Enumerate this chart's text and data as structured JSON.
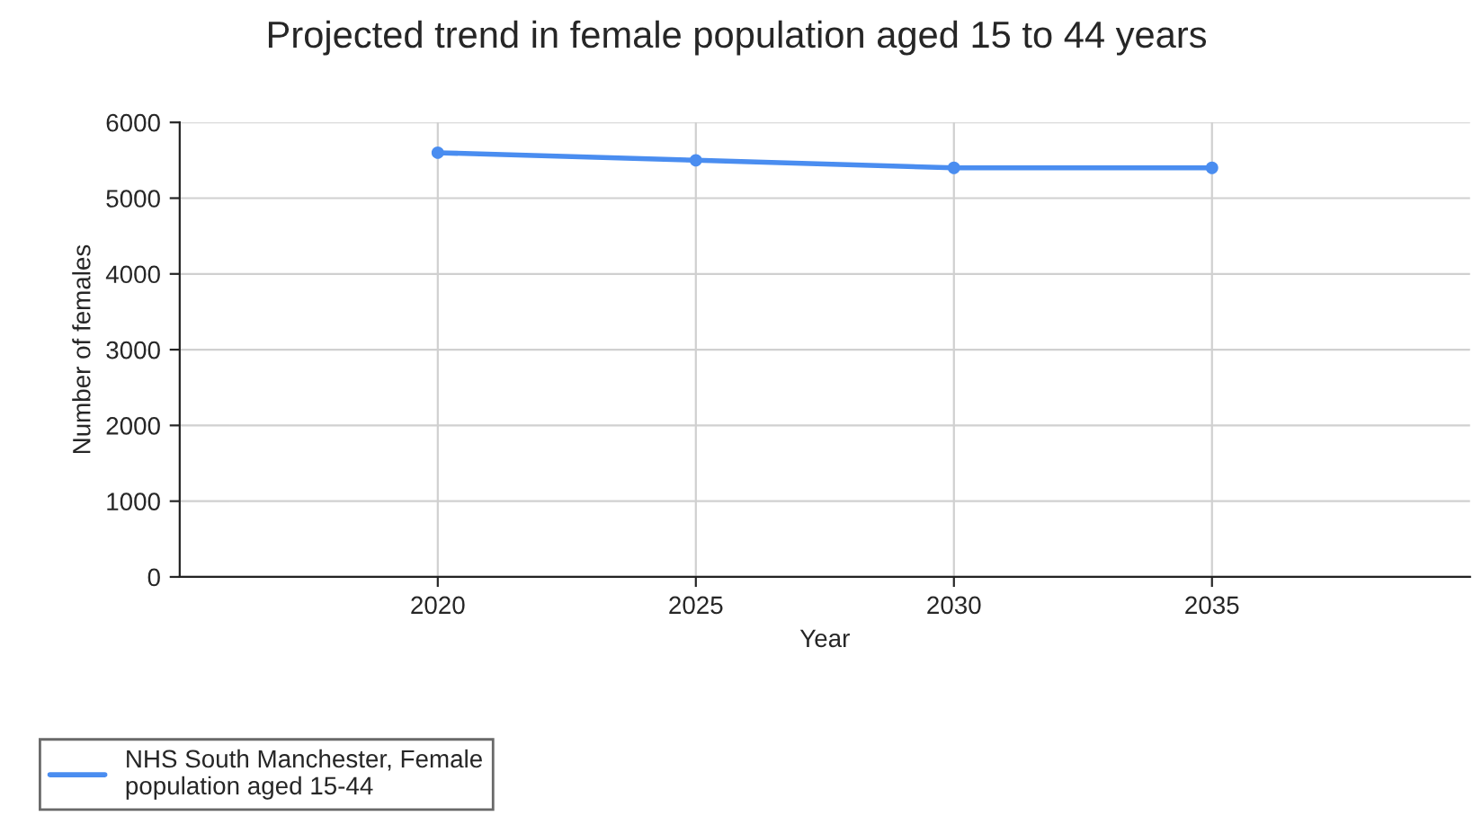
{
  "chart_data": {
    "type": "line",
    "title": "Projected trend in female population aged 15 to 44 years",
    "xlabel": "Year",
    "ylabel": "Number of females",
    "x": [
      2020,
      2025,
      2030,
      2035
    ],
    "series": [
      {
        "name": "NHS South Manchester, Female\npopulation aged 15-44",
        "color": "#4a8df0",
        "values": [
          5600,
          5500,
          5400,
          5400
        ]
      }
    ],
    "xlim": [
      2015,
      2040
    ],
    "xticks": [
      2020,
      2025,
      2030,
      2035
    ],
    "ylim": [
      0,
      6000
    ],
    "yticks": [
      0,
      1000,
      2000,
      3000,
      4000,
      5000,
      6000
    ],
    "grid": true,
    "legend": "bottom left",
    "marker": "circle",
    "line_style": "solid"
  }
}
